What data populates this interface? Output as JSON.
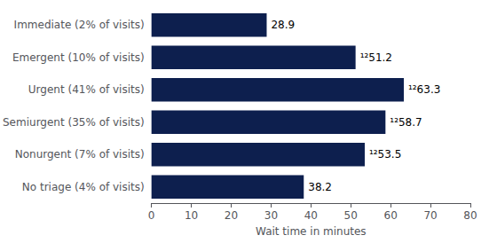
{
  "chart_data": {
    "type": "bar",
    "orientation": "horizontal",
    "categories": [
      "Immediate (2% of visits)",
      "Emergent (10% of visits)",
      "Urgent (41% of visits)",
      "Semiurgent (35% of visits)",
      "Nonurgent (7% of visits)",
      "No triage (4% of visits)"
    ],
    "values": [
      28.9,
      51.2,
      63.3,
      58.7,
      53.5,
      38.2
    ],
    "value_labels": [
      "28.9",
      "¹²51.2",
      "¹²63.3",
      "¹²58.7",
      "¹²53.5",
      "38.2"
    ],
    "data_labels": true,
    "color": "#0d1f4e",
    "xlabel": "Wait time in minutes",
    "xlim": [
      0,
      80
    ],
    "xticks": [
      0,
      10,
      20,
      30,
      40,
      50,
      60,
      70,
      80
    ],
    "grid": false
  }
}
